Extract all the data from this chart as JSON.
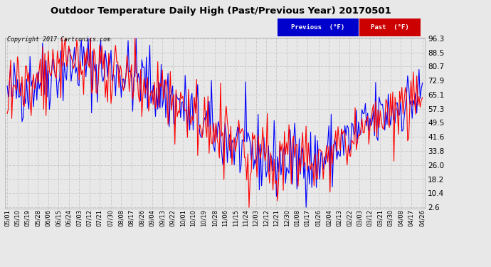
{
  "title": "Outdoor Temperature Daily High (Past/Previous Year) 20170501",
  "copyright": "Copyright 2017 Cartronics.com",
  "legend_prev": "Previous  (°F)",
  "legend_past": "Past  (°F)",
  "yticks": [
    2.6,
    10.4,
    18.2,
    26.0,
    33.8,
    41.6,
    49.5,
    57.3,
    65.1,
    72.9,
    80.7,
    88.5,
    96.3
  ],
  "ylim": [
    2.6,
    96.3
  ],
  "fig_bg": "#e8e8e8",
  "plot_bg": "#e8e8e8",
  "grid_color": "#cccccc",
  "line_prev": "#0000ff",
  "line_past": "#ff0000",
  "legend_prev_bg": "#0000cc",
  "legend_past_bg": "#cc0000",
  "x_dates": [
    "05/01",
    "05/10",
    "05/19",
    "05/28",
    "06/06",
    "06/15",
    "06/24",
    "07/03",
    "07/12",
    "07/21",
    "07/30",
    "08/08",
    "08/17",
    "08/26",
    "09/04",
    "09/13",
    "09/22",
    "10/01",
    "10/10",
    "10/19",
    "10/28",
    "11/06",
    "11/15",
    "11/24",
    "12/03",
    "12/12",
    "12/21",
    "12/30",
    "01/08",
    "01/17",
    "01/26",
    "02/04",
    "02/13",
    "02/22",
    "03/03",
    "03/12",
    "03/21",
    "03/30",
    "04/08",
    "04/17",
    "04/26"
  ],
  "figw": 6.9,
  "figh": 3.75,
  "dpi": 100
}
